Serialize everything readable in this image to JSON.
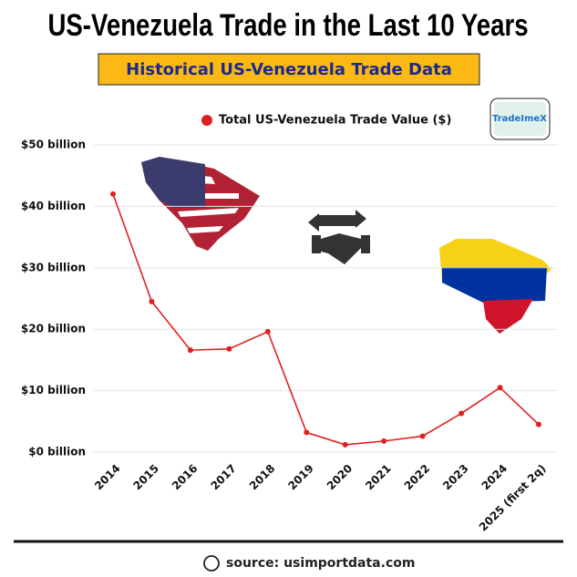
{
  "chart_data": {
    "type": "line",
    "title": "US-Venezuela Trade in the Last 10 Years",
    "subtitle": "Historical US-Venezuela Trade Data",
    "logo": "TradeImeX",
    "source": "source: usimportdata.com",
    "categories": [
      "2014",
      "2015",
      "2016",
      "2017",
      "2018",
      "2019",
      "2020",
      "2021",
      "2022",
      "2023",
      "2024",
      "2025 (first 2q)"
    ],
    "series": [
      {
        "name": "Total US-Venezuela Trade Value ($)",
        "color": "#e02020",
        "values": [
          42,
          24.5,
          16.6,
          16.8,
          19.6,
          3.2,
          1.2,
          1.8,
          2.6,
          6.3,
          10.5,
          4.5
        ]
      }
    ],
    "ylim": [
      0,
      50
    ],
    "yticks": [
      {
        "value": 0,
        "label": "$0 billion"
      },
      {
        "value": 10,
        "label": "$10 billion"
      },
      {
        "value": 20,
        "label": "$20 billion"
      },
      {
        "value": 30,
        "label": "$30 billion"
      },
      {
        "value": 40,
        "label": "$40 billion"
      },
      {
        "value": 50,
        "label": "$50 billion"
      }
    ],
    "grid": true,
    "legend": "top"
  }
}
